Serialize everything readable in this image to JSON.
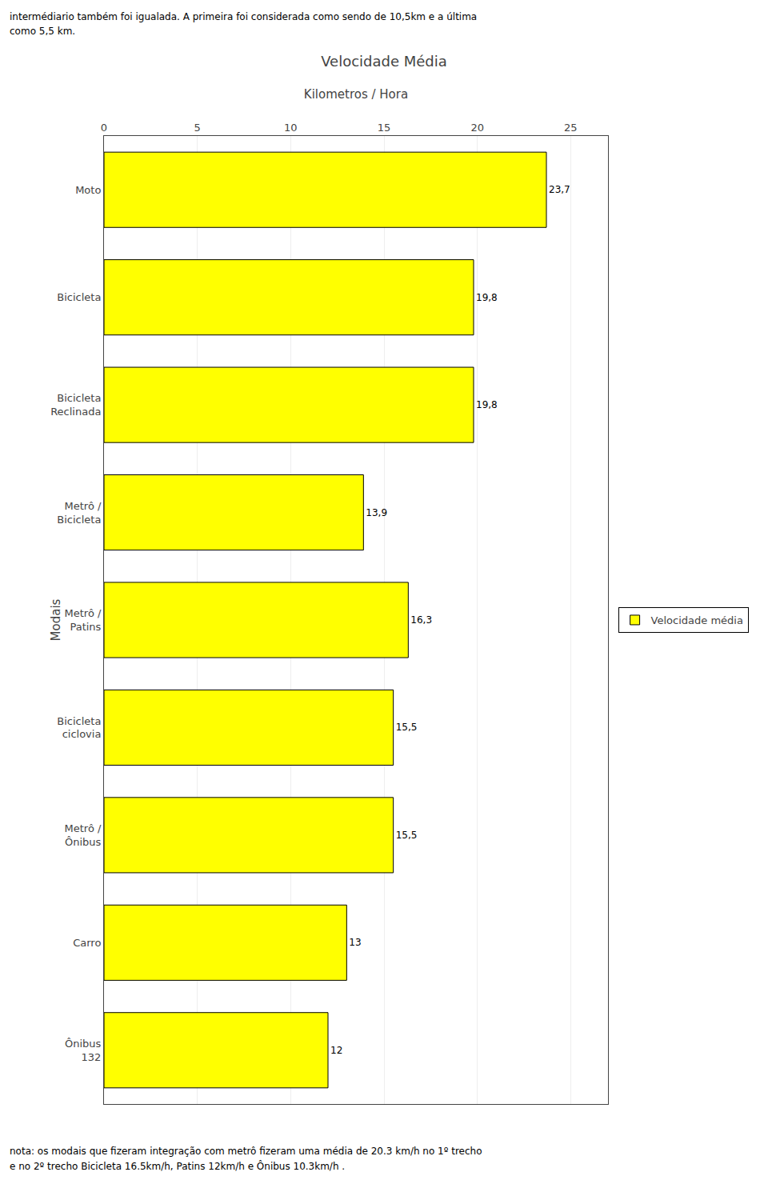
{
  "chart_data": {
    "type": "bar",
    "orientation": "horizontal",
    "title": "Velocidade Média",
    "xlabel": "Kilometros / Hora",
    "ylabel": "Modais",
    "annotations": [
      "intermédiario também foi igualada. A primeira foi considerada como sendo de 10,5km e a última",
      "como 5,5 km.",
      "nota: os modais que fizeram integração com metrô fizeram uma média de 20.3 km/h no 1º trecho",
      "e no 2º trecho Bicicleta 16.5km/h, Patins 12km/h e Ônibus 10.3km/h ."
    ],
    "categories": [
      "Ônibus\n132",
      "Carro",
      "Metrô /\nÔnibus",
      "Bicicleta\nciclovia",
      "Metrô /\nPatins",
      "Metrô /\nBicicleta",
      "Bicicleta\nReclinada",
      "Bicicleta",
      "Moto"
    ],
    "series": [
      {
        "name": "Velocidade média",
        "color": "#FFFF00",
        "values": [
          12,
          13,
          15.5,
          15.5,
          16.3,
          13.9,
          19.8,
          19.8,
          23.7
        ],
        "value_labels": [
          "12",
          "13",
          "15,5",
          "15,5",
          "16,3",
          "13,9",
          "19,8",
          "19,8",
          "23,7"
        ]
      }
    ],
    "xlim": [
      0,
      27
    ],
    "xticks": [
      0,
      5,
      10,
      15,
      20,
      25
    ],
    "grid": true,
    "legend": "right",
    "data_labels": true
  }
}
